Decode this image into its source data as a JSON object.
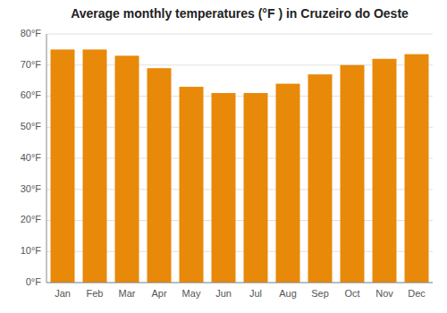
{
  "chart_data": {
    "type": "bar",
    "title": "Average monthly temperatures (°F ) in Cruzeiro do Oeste",
    "categories": [
      "Jan",
      "Feb",
      "Mar",
      "Apr",
      "May",
      "Jun",
      "Jul",
      "Aug",
      "Sep",
      "Oct",
      "Nov",
      "Dec"
    ],
    "values": [
      75,
      75,
      73,
      69,
      63,
      61,
      61,
      64,
      67,
      70,
      72,
      73.5
    ],
    "color": "#E8890A",
    "ylim": [
      0,
      80
    ],
    "yticks": [
      {
        "value": 0,
        "label": "0°F"
      },
      {
        "value": 10,
        "label": "10°F"
      },
      {
        "value": 20,
        "label": "20°F"
      },
      {
        "value": 30,
        "label": "30°F"
      },
      {
        "value": 40,
        "label": "40°F"
      },
      {
        "value": 50,
        "label": "50°F"
      },
      {
        "value": 60,
        "label": "60°F"
      },
      {
        "value": 70,
        "label": "70°F"
      },
      {
        "value": 80,
        "label": "80°F"
      }
    ],
    "grid": true
  }
}
